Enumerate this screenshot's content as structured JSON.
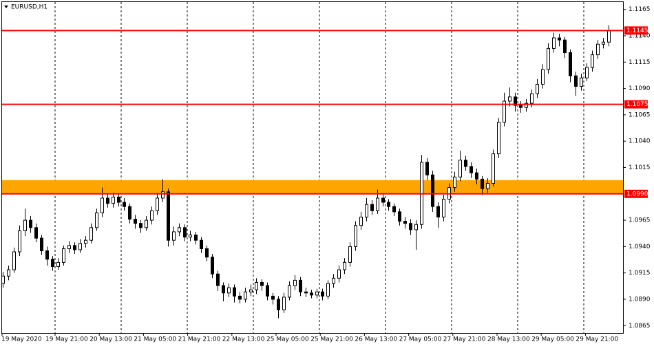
{
  "chart_data": {
    "type": "candlestick",
    "title": "EURUSD,H1",
    "x_labels": [
      "19 May 2020",
      "19 May 21:00",
      "20 May 13:00",
      "21 May 05:00",
      "21 May 21:00",
      "22 May 13:00",
      "25 May 05:00",
      "25 May 21:00",
      "26 May 13:00",
      "27 May 05:00",
      "27 May 21:00",
      "28 May 13:00",
      "29 May 05:00",
      "29 May 21:00"
    ],
    "ylim": [
      1.0858,
      1.1172
    ],
    "yticks": [
      1.1165,
      {
        "value": 1.114,
        "label": "1.1140"
      },
      1.1115,
      {
        "value": 1.109,
        "label": "1.1090"
      },
      1.1065,
      {
        "value": 1.104,
        "label": "1.1040"
      },
      1.1015,
      1.0965,
      {
        "value": 1.094,
        "label": "1.0940"
      },
      1.0915,
      {
        "value": 1.089,
        "label": "1.0890"
      },
      1.0865
    ],
    "levels": [
      {
        "value": 1.1145,
        "label": "1.1145"
      },
      {
        "value": 1.1075,
        "label": "1.1075"
      },
      {
        "value": 1.099,
        "label": "1.0990"
      }
    ],
    "level_color": "#ff0000",
    "zone": {
      "from": 1.099,
      "to": 1.1003,
      "color": "#ffa500"
    },
    "up_color": "#ffffff",
    "down_color": "#000000",
    "open": [
      1.0905,
      1.0912,
      1.0918,
      1.0935,
      1.0955,
      1.0965,
      1.0958,
      1.0948,
      1.0936,
      1.0928,
      1.0921,
      1.0925,
      1.0938,
      1.0941,
      1.0937,
      1.0943,
      1.0946,
      1.0958,
      1.0972,
      1.0986,
      1.0981,
      1.0987,
      1.0982,
      1.0978,
      1.0966,
      1.0962,
      1.0958,
      1.0965,
      1.0974,
      1.0986,
      1.0992,
      1.0946,
      1.0954,
      1.0958,
      1.0949,
      1.0951,
      1.0946,
      1.0938,
      1.093,
      1.0914,
      1.0903,
      1.0896,
      1.0901,
      1.0893,
      1.089,
      1.0897,
      1.0899,
      1.0906,
      1.0903,
      1.0893,
      1.089,
      1.088,
      1.0892,
      1.0903,
      1.0908,
      1.0897,
      1.0896,
      1.0894,
      1.0897,
      1.0893,
      1.0905,
      1.091,
      1.0918,
      1.0925,
      1.094,
      1.096,
      1.0968,
      1.098,
      1.0974,
      1.0986,
      1.0982,
      1.0978,
      1.0973,
      1.0964,
      1.0962,
      1.0956,
      1.0961,
      1.102,
      1.1008,
      1.0978,
      1.0968,
      1.0985,
      1.0996,
      1.1006,
      1.1022,
      1.1016,
      1.101,
      1.1004,
      1.0995,
      1.1,
      1.1028,
      1.1058,
      1.1078,
      1.1082,
      1.1074,
      1.1072,
      1.1076,
      1.1085,
      1.1094,
      1.1108,
      1.1128,
      1.1138,
      1.1136,
      1.1124,
      1.1102,
      1.1092,
      1.11,
      1.111,
      1.1122,
      1.1132,
      1.1134
    ],
    "high": [
      1.0916,
      1.0922,
      1.0939,
      1.096,
      1.0976,
      1.0969,
      1.0962,
      1.0951,
      1.094,
      1.0931,
      1.0929,
      1.0941,
      1.0945,
      1.0944,
      1.0947,
      1.095,
      1.0962,
      1.0976,
      1.0996,
      1.099,
      1.0991,
      1.099,
      1.0986,
      1.0981,
      1.097,
      1.0965,
      1.0969,
      1.0978,
      1.0991,
      1.1004,
      1.0995,
      1.0959,
      1.0962,
      1.0961,
      1.0955,
      1.0954,
      1.0949,
      1.0941,
      1.0933,
      1.0917,
      1.0906,
      1.0905,
      1.0904,
      1.0897,
      1.0901,
      1.0904,
      1.091,
      1.0909,
      1.0906,
      1.0896,
      1.0893,
      1.0896,
      1.0907,
      1.0913,
      1.0911,
      1.0901,
      1.0899,
      1.09,
      1.09,
      1.0908,
      1.0914,
      1.0922,
      1.0929,
      1.0944,
      1.0964,
      1.0973,
      1.0986,
      1.0984,
      1.0994,
      1.099,
      1.0985,
      1.0981,
      1.0976,
      1.0968,
      1.0966,
      1.0965,
      1.1027,
      1.1024,
      1.1012,
      1.0982,
      1.0989,
      1.1,
      1.1011,
      1.1031,
      1.1026,
      1.102,
      1.1014,
      1.1007,
      1.1005,
      1.1032,
      1.1062,
      1.1086,
      1.1091,
      1.1086,
      1.1078,
      1.108,
      1.1089,
      1.1099,
      1.1113,
      1.1133,
      1.1143,
      1.1142,
      1.1139,
      1.1127,
      1.1106,
      1.1104,
      1.1114,
      1.1126,
      1.1136,
      1.1138,
      1.115
    ],
    "low": [
      1.0901,
      1.0908,
      1.0915,
      1.0931,
      1.095,
      1.0953,
      1.0944,
      1.0932,
      1.0922,
      1.0917,
      1.0918,
      1.0922,
      1.0934,
      1.0933,
      1.0934,
      1.0939,
      1.0943,
      1.0955,
      1.0968,
      1.0977,
      1.0977,
      1.0978,
      1.0974,
      1.0962,
      1.0957,
      1.0953,
      1.0955,
      1.0961,
      1.097,
      1.0982,
      1.094,
      1.0941,
      1.095,
      1.0945,
      1.0945,
      1.0942,
      1.0934,
      1.0926,
      1.091,
      1.0898,
      1.0888,
      1.0892,
      1.0887,
      1.0886,
      1.0887,
      1.0893,
      1.0895,
      1.0898,
      1.0889,
      1.0885,
      1.0872,
      1.0877,
      1.0889,
      1.0899,
      1.0893,
      1.0892,
      1.0891,
      1.0891,
      1.0889,
      1.089,
      1.0901,
      1.0906,
      1.0914,
      1.0921,
      1.0936,
      1.0956,
      1.0964,
      1.097,
      1.0971,
      1.0978,
      1.0974,
      1.0969,
      1.096,
      1.0957,
      1.0951,
      1.0937,
      1.0957,
      1.1003,
      1.0973,
      1.0958,
      1.0964,
      1.0981,
      1.0992,
      1.1002,
      1.1012,
      1.1005,
      1.0999,
      1.0989,
      1.0991,
      1.0997,
      1.1024,
      1.1054,
      1.1073,
      1.1068,
      1.1067,
      1.1068,
      1.1072,
      1.1081,
      1.109,
      1.1104,
      1.1124,
      1.113,
      1.1119,
      1.1096,
      1.1083,
      1.1088,
      1.1097,
      1.1106,
      1.1118,
      1.1128,
      1.113
    ],
    "close": [
      1.0912,
      1.0918,
      1.0935,
      1.0955,
      1.0965,
      1.0958,
      1.0948,
      1.0936,
      1.0928,
      1.0921,
      1.0925,
      1.0938,
      1.0941,
      1.0937,
      1.0943,
      1.0946,
      1.0958,
      1.0972,
      1.0986,
      1.0981,
      1.0987,
      1.0982,
      1.0978,
      1.0966,
      1.0962,
      1.0958,
      1.0965,
      1.0974,
      1.0986,
      1.0992,
      1.0946,
      1.0954,
      1.0958,
      1.0949,
      1.0951,
      1.0946,
      1.0938,
      1.093,
      1.0914,
      1.0903,
      1.0896,
      1.0901,
      1.0893,
      1.089,
      1.0897,
      1.0899,
      1.0906,
      1.0903,
      1.0893,
      1.089,
      1.088,
      1.0892,
      1.0903,
      1.0908,
      1.0897,
      1.0896,
      1.0894,
      1.0897,
      1.0893,
      1.0905,
      1.091,
      1.0918,
      1.0925,
      1.094,
      1.096,
      1.0968,
      1.098,
      1.0974,
      1.0986,
      1.0982,
      1.0978,
      1.0973,
      1.0964,
      1.0962,
      1.0956,
      1.0961,
      1.102,
      1.1008,
      1.0978,
      1.0968,
      1.0985,
      1.0996,
      1.1006,
      1.1022,
      1.1016,
      1.101,
      1.1004,
      1.0995,
      1.1,
      1.1028,
      1.1058,
      1.1078,
      1.1082,
      1.1074,
      1.1072,
      1.1076,
      1.1085,
      1.1094,
      1.1108,
      1.1128,
      1.1138,
      1.1136,
      1.1124,
      1.1102,
      1.1092,
      1.11,
      1.111,
      1.1122,
      1.1132,
      1.1134,
      1.1145
    ]
  }
}
